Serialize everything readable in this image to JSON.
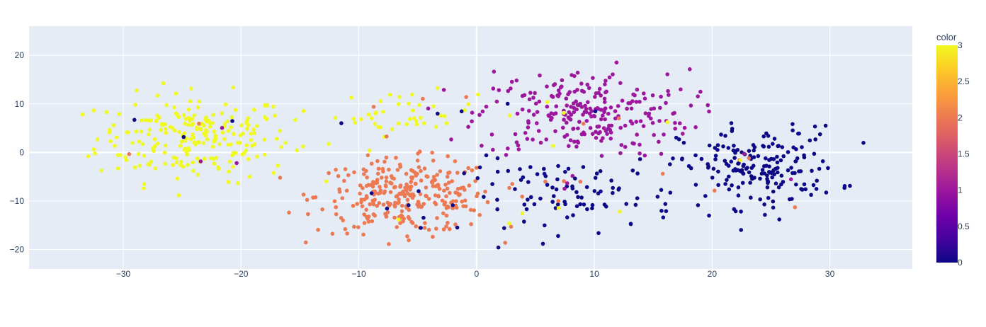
{
  "chart_data": {
    "type": "scatter",
    "title": "",
    "xlabel": "",
    "ylabel": "",
    "xlim": [
      -38,
      37
    ],
    "ylim": [
      -24,
      26
    ],
    "x_ticks": [
      -30,
      -20,
      -10,
      0,
      10,
      20,
      30
    ],
    "x_tick_labels": [
      "−30",
      "−20",
      "−10",
      "0",
      "10",
      "20",
      "30"
    ],
    "y_ticks": [
      -20,
      -10,
      0,
      10,
      20
    ],
    "y_tick_labels": [
      "−20",
      "−10",
      "0",
      "10",
      "20"
    ],
    "grid": true,
    "plot_bgcolor": "#e5ecf6",
    "grid_color": "#ffffff",
    "colorbar": {
      "title": "color",
      "range": [
        0,
        3
      ],
      "ticks": [
        0,
        0.5,
        1,
        1.5,
        2,
        2.5,
        3
      ],
      "tick_labels": [
        "0",
        "0.5",
        "1",
        "1.5",
        "2",
        "2.5",
        "3"
      ],
      "colorscale": [
        "#0d0887",
        "#46039f",
        "#7201a8",
        "#9c179e",
        "#bd3786",
        "#d8576b",
        "#ed7953",
        "#fb9f3a",
        "#fdca26",
        "#f0f921"
      ]
    },
    "clusters": [
      {
        "color_value": 3,
        "center": [
          -24,
          3
        ],
        "spread": [
          5.5,
          6
        ],
        "count": 230
      },
      {
        "color_value": 3,
        "center": [
          -6,
          8
        ],
        "spread": [
          4,
          3
        ],
        "count": 40
      },
      {
        "color_value": 2,
        "center": [
          -6,
          -9
        ],
        "spread": [
          5,
          5
        ],
        "count": 300
      },
      {
        "color_value": 1,
        "center": [
          9,
          8
        ],
        "spread": [
          6,
          6
        ],
        "count": 250
      },
      {
        "color_value": 0,
        "center": [
          24,
          -3
        ],
        "spread": [
          4.5,
          5.5
        ],
        "count": 190
      },
      {
        "color_value": 0,
        "center": [
          8,
          -9
        ],
        "spread": [
          6,
          5
        ],
        "count": 90
      }
    ],
    "noise_points": 60
  }
}
